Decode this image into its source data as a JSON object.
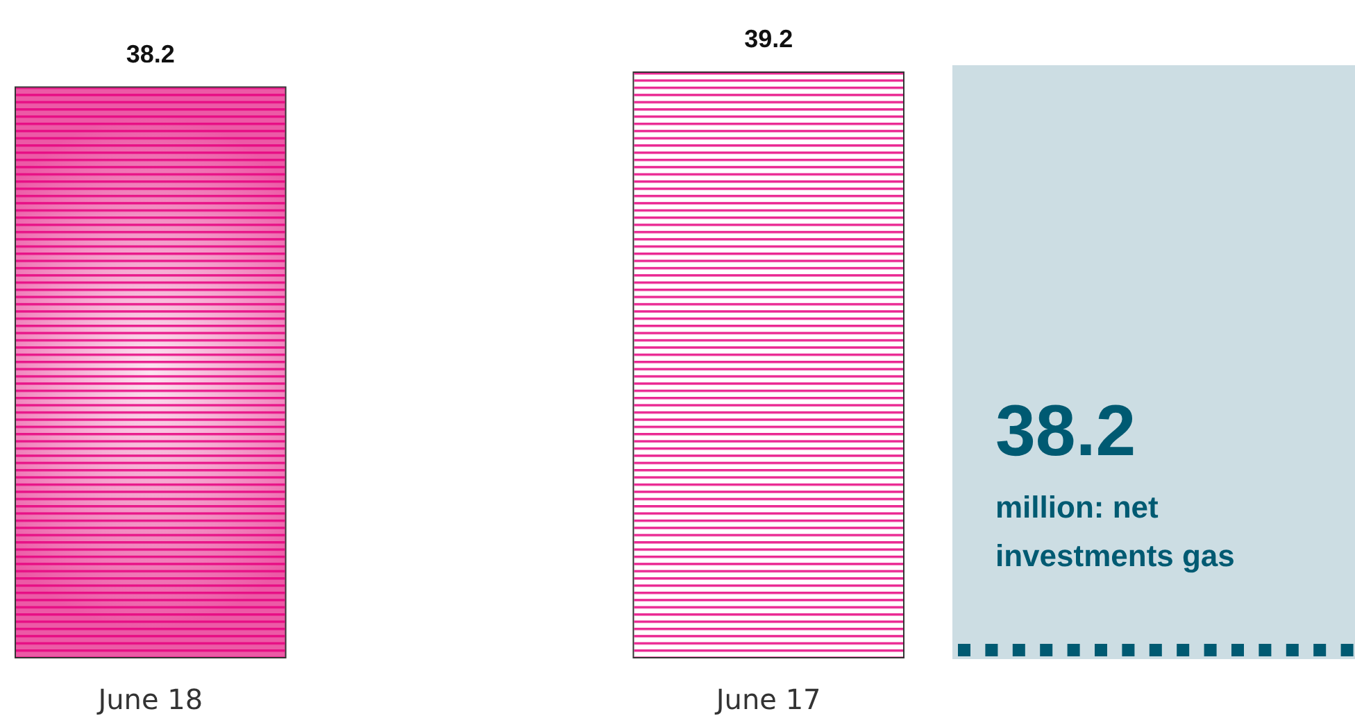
{
  "chart_data": [
    {
      "type": "bar",
      "categories": [
        "June 18",
        "June 17"
      ],
      "values": [
        38.2,
        39.2
      ],
      "colors": [
        "#ec5aa6",
        "#ffffff"
      ],
      "data_labels": true
    },
    {
      "type": "other",
      "title": "38.2",
      "subtitle": "million: net investments gas"
    }
  ]
}
